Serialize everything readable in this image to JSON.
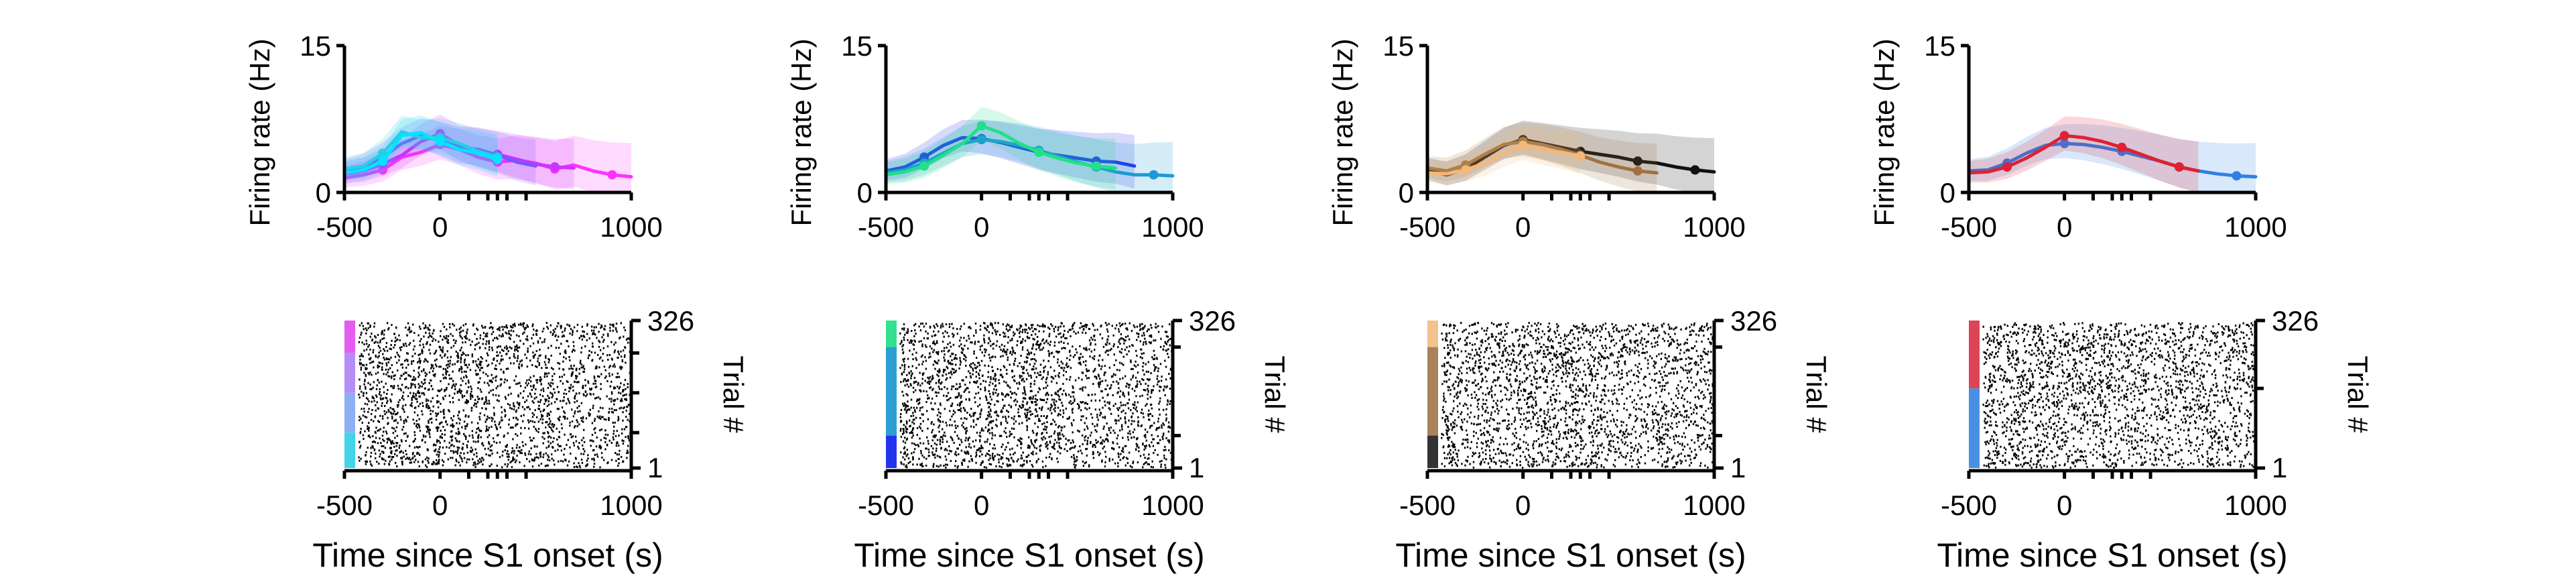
{
  "chart_data": [
    {
      "type": "line",
      "ylabel": "Firing rate (Hz)",
      "xlim": [
        -500,
        1000
      ],
      "ylim": [
        0,
        15
      ],
      "xticks": [
        "-500",
        "0",
        "1000"
      ],
      "yticks": [
        "0",
        "15"
      ],
      "series": [
        {
          "color": "#ff33ff",
          "x": [
            -500,
            -400,
            -300,
            -200,
            -100,
            0,
            100,
            200,
            300,
            400,
            500,
            600,
            700,
            800,
            900,
            1000
          ],
          "y": [
            1.5,
            1.8,
            2.3,
            3.6,
            4.1,
            4.9,
            4.4,
            3.6,
            3.1,
            3.3,
            3.0,
            2.4,
            2.8,
            2.2,
            1.8,
            1.6
          ]
        },
        {
          "color": "#cc33ff",
          "x": [
            -500,
            -400,
            -300,
            -200,
            -100,
            0,
            100,
            200,
            300,
            400,
            500,
            600,
            700
          ],
          "y": [
            1.9,
            2.2,
            2.9,
            3.8,
            5.2,
            6.0,
            4.8,
            4.3,
            3.9,
            3.4,
            2.9,
            2.6,
            2.5
          ]
        },
        {
          "color": "#7a55ff",
          "x": [
            -500,
            -400,
            -300,
            -200,
            -100,
            0,
            100,
            200,
            300,
            400,
            500
          ],
          "y": [
            2.2,
            2.6,
            3.6,
            5.0,
            5.8,
            5.3,
            4.6,
            4.4,
            3.8,
            3.1,
            2.7
          ]
        },
        {
          "color": "#33c8e0",
          "x": [
            -500,
            -400,
            -300,
            -200,
            -100,
            0,
            100,
            200,
            300
          ],
          "y": [
            2.4,
            2.7,
            4.0,
            6.2,
            5.6,
            5.6,
            5.0,
            4.2,
            3.6
          ]
        },
        {
          "color": "#00e5ff",
          "x": [
            -500,
            -400,
            -300,
            -200,
            -100,
            0,
            100,
            200,
            300
          ],
          "y": [
            2.0,
            2.3,
            3.2,
            5.8,
            6.1,
            5.2,
            4.4,
            4.0,
            3.4
          ]
        }
      ]
    },
    {
      "type": "line",
      "ylabel": "Firing rate (Hz)",
      "xlim": [
        -500,
        1000
      ],
      "ylim": [
        0,
        15
      ],
      "xticks": [
        "-500",
        "0",
        "1000"
      ],
      "yticks": [
        "0",
        "15"
      ],
      "series": [
        {
          "color": "#2233ee",
          "x": [
            -500,
            -400,
            -300,
            -200,
            -100,
            0,
            100,
            200,
            300,
            400,
            500,
            600,
            700,
            800
          ],
          "y": [
            2.2,
            2.6,
            3.6,
            4.8,
            5.6,
            5.5,
            5.1,
            4.6,
            4.1,
            3.8,
            3.5,
            3.2,
            3.1,
            2.7
          ]
        },
        {
          "color": "#1c9ad6",
          "x": [
            -500,
            -400,
            -300,
            -200,
            -100,
            0,
            100,
            200,
            300,
            400,
            500,
            600,
            700,
            800,
            900,
            1000
          ],
          "y": [
            2.0,
            2.3,
            3.0,
            4.0,
            5.0,
            5.4,
            5.2,
            4.8,
            4.3,
            3.7,
            3.1,
            2.6,
            2.1,
            1.8,
            1.8,
            1.7
          ]
        },
        {
          "color": "#22e08a",
          "x": [
            -500,
            -400,
            -300,
            -200,
            -100,
            0,
            100,
            200,
            300,
            400,
            500,
            600,
            700
          ],
          "y": [
            1.8,
            2.1,
            2.7,
            3.8,
            5.0,
            6.8,
            6.1,
            5.0,
            4.1,
            3.5,
            3.0,
            2.7,
            2.5
          ]
        }
      ]
    },
    {
      "type": "line",
      "ylabel": "Firing rate (Hz)",
      "xlim": [
        -500,
        1000
      ],
      "ylim": [
        0,
        15
      ],
      "xticks": [
        "-500",
        "0",
        "1000"
      ],
      "yticks": [
        "0",
        "15"
      ],
      "series": [
        {
          "color": "#111111",
          "x": [
            -500,
            -400,
            -300,
            -200,
            -100,
            0,
            100,
            200,
            300,
            400,
            500,
            600,
            700,
            800,
            900,
            1000
          ],
          "y": [
            2.3,
            1.8,
            2.4,
            3.6,
            4.8,
            5.4,
            5.0,
            4.6,
            4.2,
            3.9,
            3.6,
            3.2,
            3.0,
            2.6,
            2.3,
            2.1
          ]
        },
        {
          "color": "#a0723e",
          "x": [
            -500,
            -400,
            -300,
            -200,
            -100,
            0,
            100,
            200,
            300,
            400,
            500,
            600,
            700
          ],
          "y": [
            2.5,
            2.2,
            2.8,
            3.9,
            4.9,
            5.2,
            4.9,
            4.4,
            3.8,
            3.1,
            2.6,
            2.2,
            2.0
          ]
        },
        {
          "color": "#f4b87a",
          "x": [
            -500,
            -400,
            -300,
            -200,
            -100,
            0,
            100,
            200,
            300
          ],
          "y": [
            2.0,
            1.9,
            2.3,
            3.0,
            4.0,
            4.8,
            4.4,
            4.1,
            3.7
          ]
        }
      ]
    },
    {
      "type": "line",
      "ylabel": "Firing rate (Hz)",
      "xlim": [
        -500,
        1000
      ],
      "ylim": [
        0,
        15
      ],
      "xticks": [
        "-500",
        "0",
        "1000"
      ],
      "yticks": [
        "0",
        "15"
      ],
      "series": [
        {
          "color": "#2f7fe6",
          "x": [
            -500,
            -400,
            -300,
            -200,
            -100,
            0,
            100,
            200,
            300,
            400,
            500,
            600,
            700,
            800,
            900,
            1000
          ],
          "y": [
            2.2,
            2.3,
            3.0,
            4.0,
            4.8,
            5.0,
            4.9,
            4.6,
            4.2,
            3.7,
            3.2,
            2.6,
            2.2,
            1.9,
            1.7,
            1.6
          ]
        },
        {
          "color": "#dd2233",
          "x": [
            -500,
            -400,
            -300,
            -200,
            -100,
            0,
            100,
            200,
            300,
            400,
            500,
            600,
            700
          ],
          "y": [
            2.0,
            2.1,
            2.6,
            3.5,
            4.6,
            5.8,
            5.6,
            5.2,
            4.6,
            3.9,
            3.2,
            2.6,
            2.2
          ]
        }
      ]
    },
    {
      "type": "raster",
      "xlim": [
        -500,
        1000
      ],
      "xticks": [
        "-500",
        "0",
        "1000"
      ],
      "xlabel": "Time since S1 onset (s)",
      "ylabel": "Trial #",
      "yticks": [
        "1",
        "326"
      ],
      "trials": 326,
      "condition_colors": [
        "#e45df0",
        "#b48ef5",
        "#8fb0f0",
        "#43d4e8"
      ],
      "condition_fractions": [
        0.22,
        0.27,
        0.27,
        0.24
      ]
    },
    {
      "type": "raster",
      "xlim": [
        -500,
        1000
      ],
      "xticks": [
        "-500",
        "0",
        "1000"
      ],
      "xlabel": "Time since S1 onset (s)",
      "ylabel": "Trial #",
      "yticks": [
        "1",
        "326"
      ],
      "trials": 326,
      "condition_colors": [
        "#33e090",
        "#2b9fd0",
        "#2233ee"
      ],
      "condition_fractions": [
        0.18,
        0.6,
        0.22
      ]
    },
    {
      "type": "raster",
      "xlim": [
        -500,
        1000
      ],
      "xticks": [
        "-500",
        "0",
        "1000"
      ],
      "xlabel": "Time since S1 onset (s)",
      "ylabel": "Trial #",
      "yticks": [
        "1",
        "326"
      ],
      "trials": 326,
      "condition_colors": [
        "#f4c28a",
        "#a9825c",
        "#333333"
      ],
      "condition_fractions": [
        0.18,
        0.6,
        0.22
      ]
    },
    {
      "type": "raster",
      "xlim": [
        -500,
        1000
      ],
      "xticks": [
        "-500",
        "0",
        "1000"
      ],
      "xlabel": "Time since S1 onset (s)",
      "ylabel": "Trial #",
      "yticks": [
        "1",
        "326"
      ],
      "trials": 326,
      "condition_colors": [
        "#dd4455",
        "#4a90e2"
      ],
      "condition_fractions": [
        0.46,
        0.54
      ]
    }
  ]
}
